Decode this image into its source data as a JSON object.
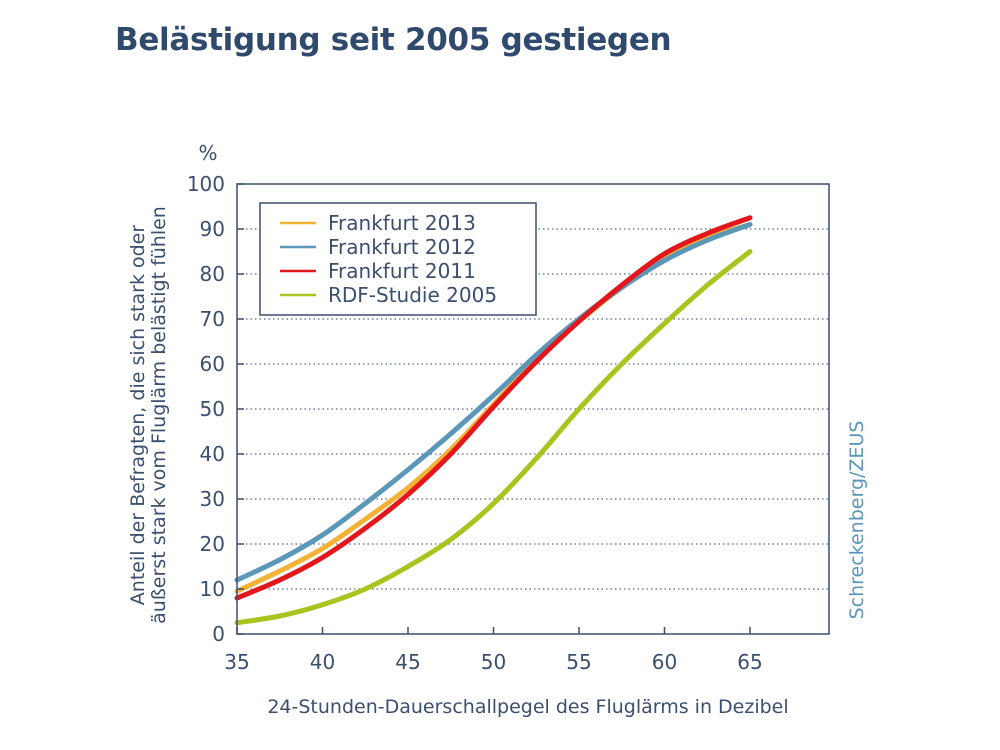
{
  "chart_data": {
    "type": "line",
    "title": "Belästigung seit 2005 gestiegen",
    "xlabel": "24-Stunden-Dauerschallpegel des Fluglärms in Dezibel",
    "ylabel": [
      "Anteil der Befragten, die sich stark oder",
      "äußerst stark vom Fluglärm belästigt fühlen"
    ],
    "y_unit": "%",
    "credit": "Schreckenberg/ZEUS",
    "xlim": [
      35,
      70
    ],
    "ylim": [
      0,
      100
    ],
    "x_ticks": [
      35,
      40,
      45,
      50,
      55,
      60,
      65
    ],
    "y_ticks": [
      0,
      10,
      20,
      30,
      40,
      50,
      60,
      70,
      80,
      90,
      100
    ],
    "grid": "horizontal dotted",
    "legend_position": "top-left",
    "x": [
      35,
      37.5,
      40,
      42.5,
      45,
      47.5,
      50,
      52.5,
      55,
      57.5,
      60,
      62.5,
      65
    ],
    "series": [
      {
        "name": "Frankfurt 2013",
        "color": "#f5b335",
        "values": [
          9.5,
          14,
          19,
          25.5,
          32.5,
          41,
          51,
          61,
          69.5,
          77,
          83.5,
          88,
          91
        ]
      },
      {
        "name": "Frankfurt 2012",
        "color": "#5b97b8",
        "values": [
          12,
          16.5,
          22,
          29,
          36.5,
          44.5,
          53,
          62,
          70,
          77,
          83,
          87.5,
          91
        ]
      },
      {
        "name": "Frankfurt 2011",
        "color": "#e3161b",
        "values": [
          8,
          12,
          17,
          23.5,
          31,
          40,
          50.5,
          60.5,
          69.5,
          77.5,
          84.5,
          89,
          92.5
        ]
      },
      {
        "name": "RDF-Studie 2005",
        "color": "#a8c41d",
        "values": [
          2.5,
          4,
          6.5,
          10,
          15,
          21,
          29,
          39,
          50,
          60,
          69,
          77.5,
          85
        ]
      }
    ]
  }
}
